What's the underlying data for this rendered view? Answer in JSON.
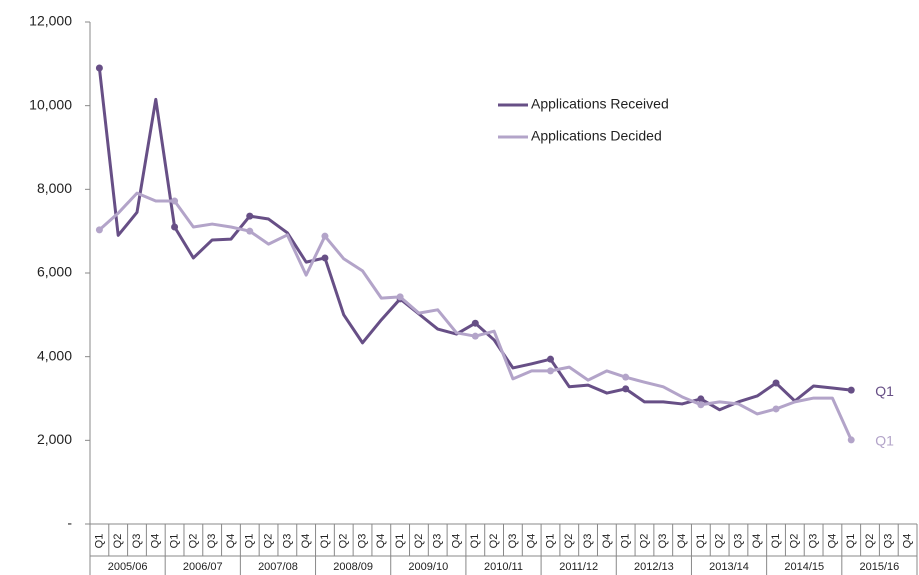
{
  "chart_data": {
    "type": "line",
    "categories": [
      "Q1",
      "Q2",
      "Q3",
      "Q4",
      "Q1",
      "Q2",
      "Q3",
      "Q4",
      "Q1",
      "Q2",
      "Q3",
      "Q4",
      "Q1",
      "Q2",
      "Q3",
      "Q4",
      "Q1",
      "Q2",
      "Q3",
      "Q4",
      "Q1",
      "Q2",
      "Q3",
      "Q4",
      "Q1",
      "Q2",
      "Q3",
      "Q4",
      "Q1",
      "Q2",
      "Q3",
      "Q4",
      "Q1",
      "Q2",
      "Q3",
      "Q4",
      "Q1",
      "Q2",
      "Q3",
      "Q4",
      "Q1",
      "Q2",
      "Q3",
      "Q4"
    ],
    "groups": [
      "2005/06",
      "2006/07",
      "2007/08",
      "2008/09",
      "2009/10",
      "2010/11",
      "2011/12",
      "2012/13",
      "2013/14",
      "2014/15",
      "2015/16"
    ],
    "series": [
      {
        "name": "Applications Received",
        "color": "#674f86",
        "end_label": "Q1",
        "values": [
          10900,
          6900,
          7450,
          10150,
          7100,
          6360,
          6790,
          6810,
          7360,
          7290,
          6960,
          6260,
          6360,
          5000,
          4330,
          4880,
          5380,
          5020,
          4660,
          4540,
          4800,
          4400,
          3730,
          3830,
          3940,
          3280,
          3320,
          3130,
          3230,
          2920,
          2920,
          2870,
          2990,
          2730,
          2920,
          3060,
          3370,
          2940,
          3300,
          3250,
          3200,
          null,
          null,
          null
        ]
      },
      {
        "name": "Applications Decided",
        "color": "#b3a4c9",
        "end_label": "Q1",
        "values": [
          7030,
          7430,
          7910,
          7720,
          7720,
          7100,
          7170,
          7100,
          7000,
          6690,
          6910,
          5950,
          6880,
          6340,
          6050,
          5400,
          5430,
          5040,
          5120,
          4570,
          4490,
          4610,
          3470,
          3660,
          3660,
          3750,
          3440,
          3660,
          3510,
          3390,
          3280,
          3040,
          2850,
          2920,
          2870,
          2630,
          2750,
          2920,
          3010,
          3010,
          2010,
          null,
          null,
          null
        ]
      }
    ],
    "ylim": [
      0,
      12000
    ],
    "yticks": [
      {
        "value": 0,
        "label": "-"
      },
      {
        "value": 2000,
        "label": "2,000"
      },
      {
        "value": 4000,
        "label": "4,000"
      },
      {
        "value": 6000,
        "label": "6,000"
      },
      {
        "value": 8000,
        "label": "8,000"
      },
      {
        "value": 10000,
        "label": "10,000"
      },
      {
        "value": 12000,
        "label": "12,000"
      }
    ],
    "grid": false
  }
}
